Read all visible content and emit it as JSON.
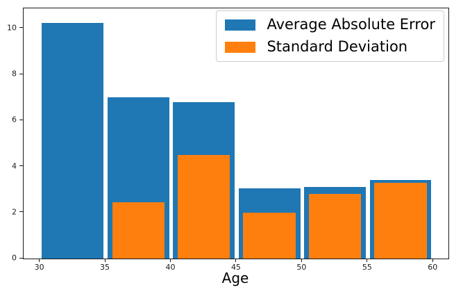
{
  "chart_data": {
    "type": "bar",
    "subtype": "overlaid-histogram",
    "title": "",
    "xlabel": "Age",
    "ylabel": "",
    "bin_edges": [
      30,
      35,
      40,
      45,
      50,
      55,
      60
    ],
    "categories": [
      "30-35",
      "35-40",
      "40-45",
      "45-50",
      "50-55",
      "55-60"
    ],
    "series": [
      {
        "name": "Average Absolute Error",
        "color": "#1f77b4",
        "bar_width": 4.7,
        "values": [
          10.25,
          7.0,
          6.8,
          3.05,
          3.1,
          3.4
        ]
      },
      {
        "name": "Standard Deviation",
        "color": "#ff7f0e",
        "bar_width": 4.0,
        "values": [
          0,
          2.45,
          4.5,
          2.0,
          2.8,
          3.3
        ]
      }
    ],
    "x_ticks": [
      30,
      35,
      40,
      45,
      50,
      55,
      60
    ],
    "y_ticks": [
      0,
      2,
      4,
      6,
      8,
      10
    ],
    "xlim": [
      28.75,
      61.15
    ],
    "ylim": [
      0,
      10.87
    ],
    "legend_position": "upper right",
    "grid": false,
    "axis_color": "#1a1a1a",
    "background_color": "#ffffff"
  }
}
